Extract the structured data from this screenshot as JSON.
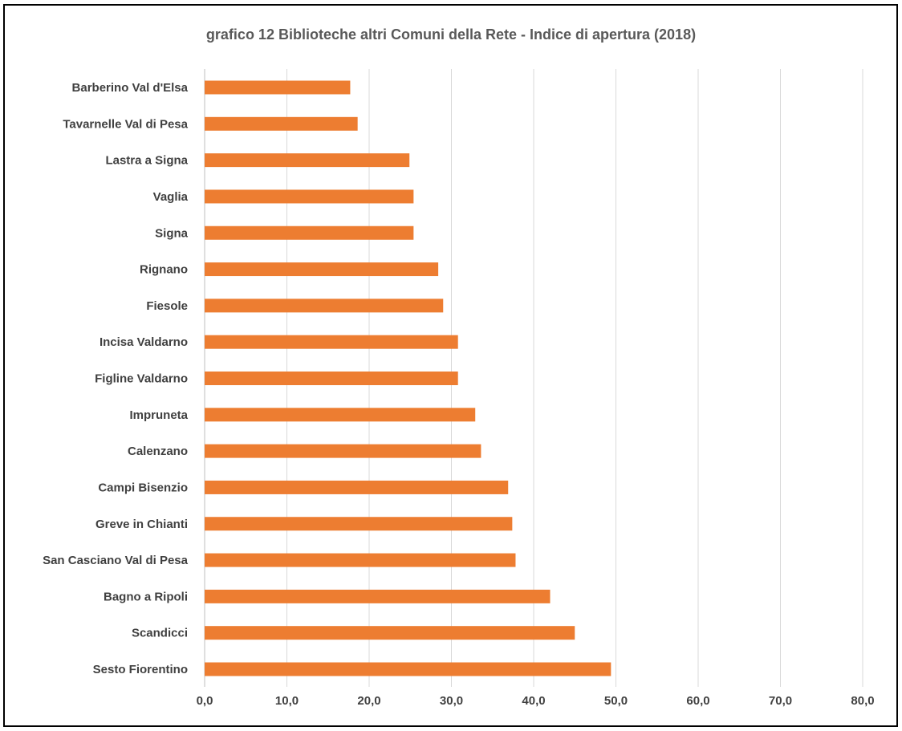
{
  "chart_data": {
    "type": "bar",
    "orientation": "horizontal",
    "title": "grafico 12  Biblioteche altri Comuni della Rete - Indice di apertura (2018)",
    "categories": [
      "Barberino Val d'Elsa",
      "Tavarnelle Val di Pesa",
      "Lastra a Signa",
      "Vaglia",
      "Signa",
      "Rignano",
      "Fiesole",
      "Incisa Valdarno",
      "Figline Valdarno",
      "Impruneta",
      "Calenzano",
      "Campi Bisenzio",
      "Greve in Chianti",
      "San Casciano Val di Pesa",
      "Bagno a Ripoli",
      "Scandicci",
      "Sesto Fiorentino"
    ],
    "values": [
      17.7,
      18.6,
      24.9,
      25.4,
      25.4,
      28.4,
      29.0,
      30.8,
      30.8,
      32.9,
      33.6,
      36.9,
      37.4,
      37.8,
      42.0,
      45.0,
      49.4
    ],
    "xlim": [
      0,
      80
    ],
    "xticks": [
      "0,0",
      "10,0",
      "20,0",
      "30,0",
      "40,0",
      "50,0",
      "60,0",
      "70,0",
      "80,0"
    ],
    "grid": true,
    "bar_color": "#ED7D31"
  }
}
